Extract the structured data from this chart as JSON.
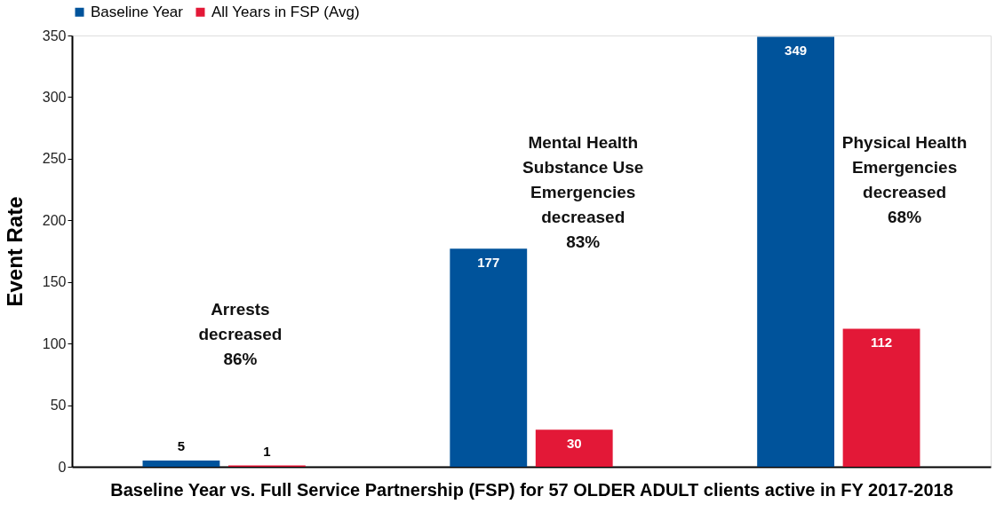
{
  "chart_data": {
    "type": "bar",
    "xlabel": "Baseline Year vs. Full Service Partnership (FSP) for 57 OLDER ADULT clients active in FY 2017-2018",
    "ylabel": "Event Rate",
    "categories": [
      null,
      null,
      null
    ],
    "series": [
      {
        "name": "Baseline Year",
        "color": "#00539b",
        "values": [
          5,
          177,
          349
        ]
      },
      {
        "name": "All Years in FSP (Avg)",
        "color": "#e31837",
        "values": [
          1,
          30,
          112
        ]
      }
    ],
    "ylim": [
      0,
      350
    ],
    "yticks": [
      0,
      50,
      100,
      150,
      200,
      250,
      300,
      350
    ],
    "data_labels": true,
    "legend": "top",
    "grid": false,
    "annotations": [
      "Arrests\ndecreased\n86%",
      "Mental Health\nSubstance Use\nEmergencies\ndecreased\n83%",
      "Physical Health\nEmergencies\ndecreased\n68%"
    ]
  }
}
